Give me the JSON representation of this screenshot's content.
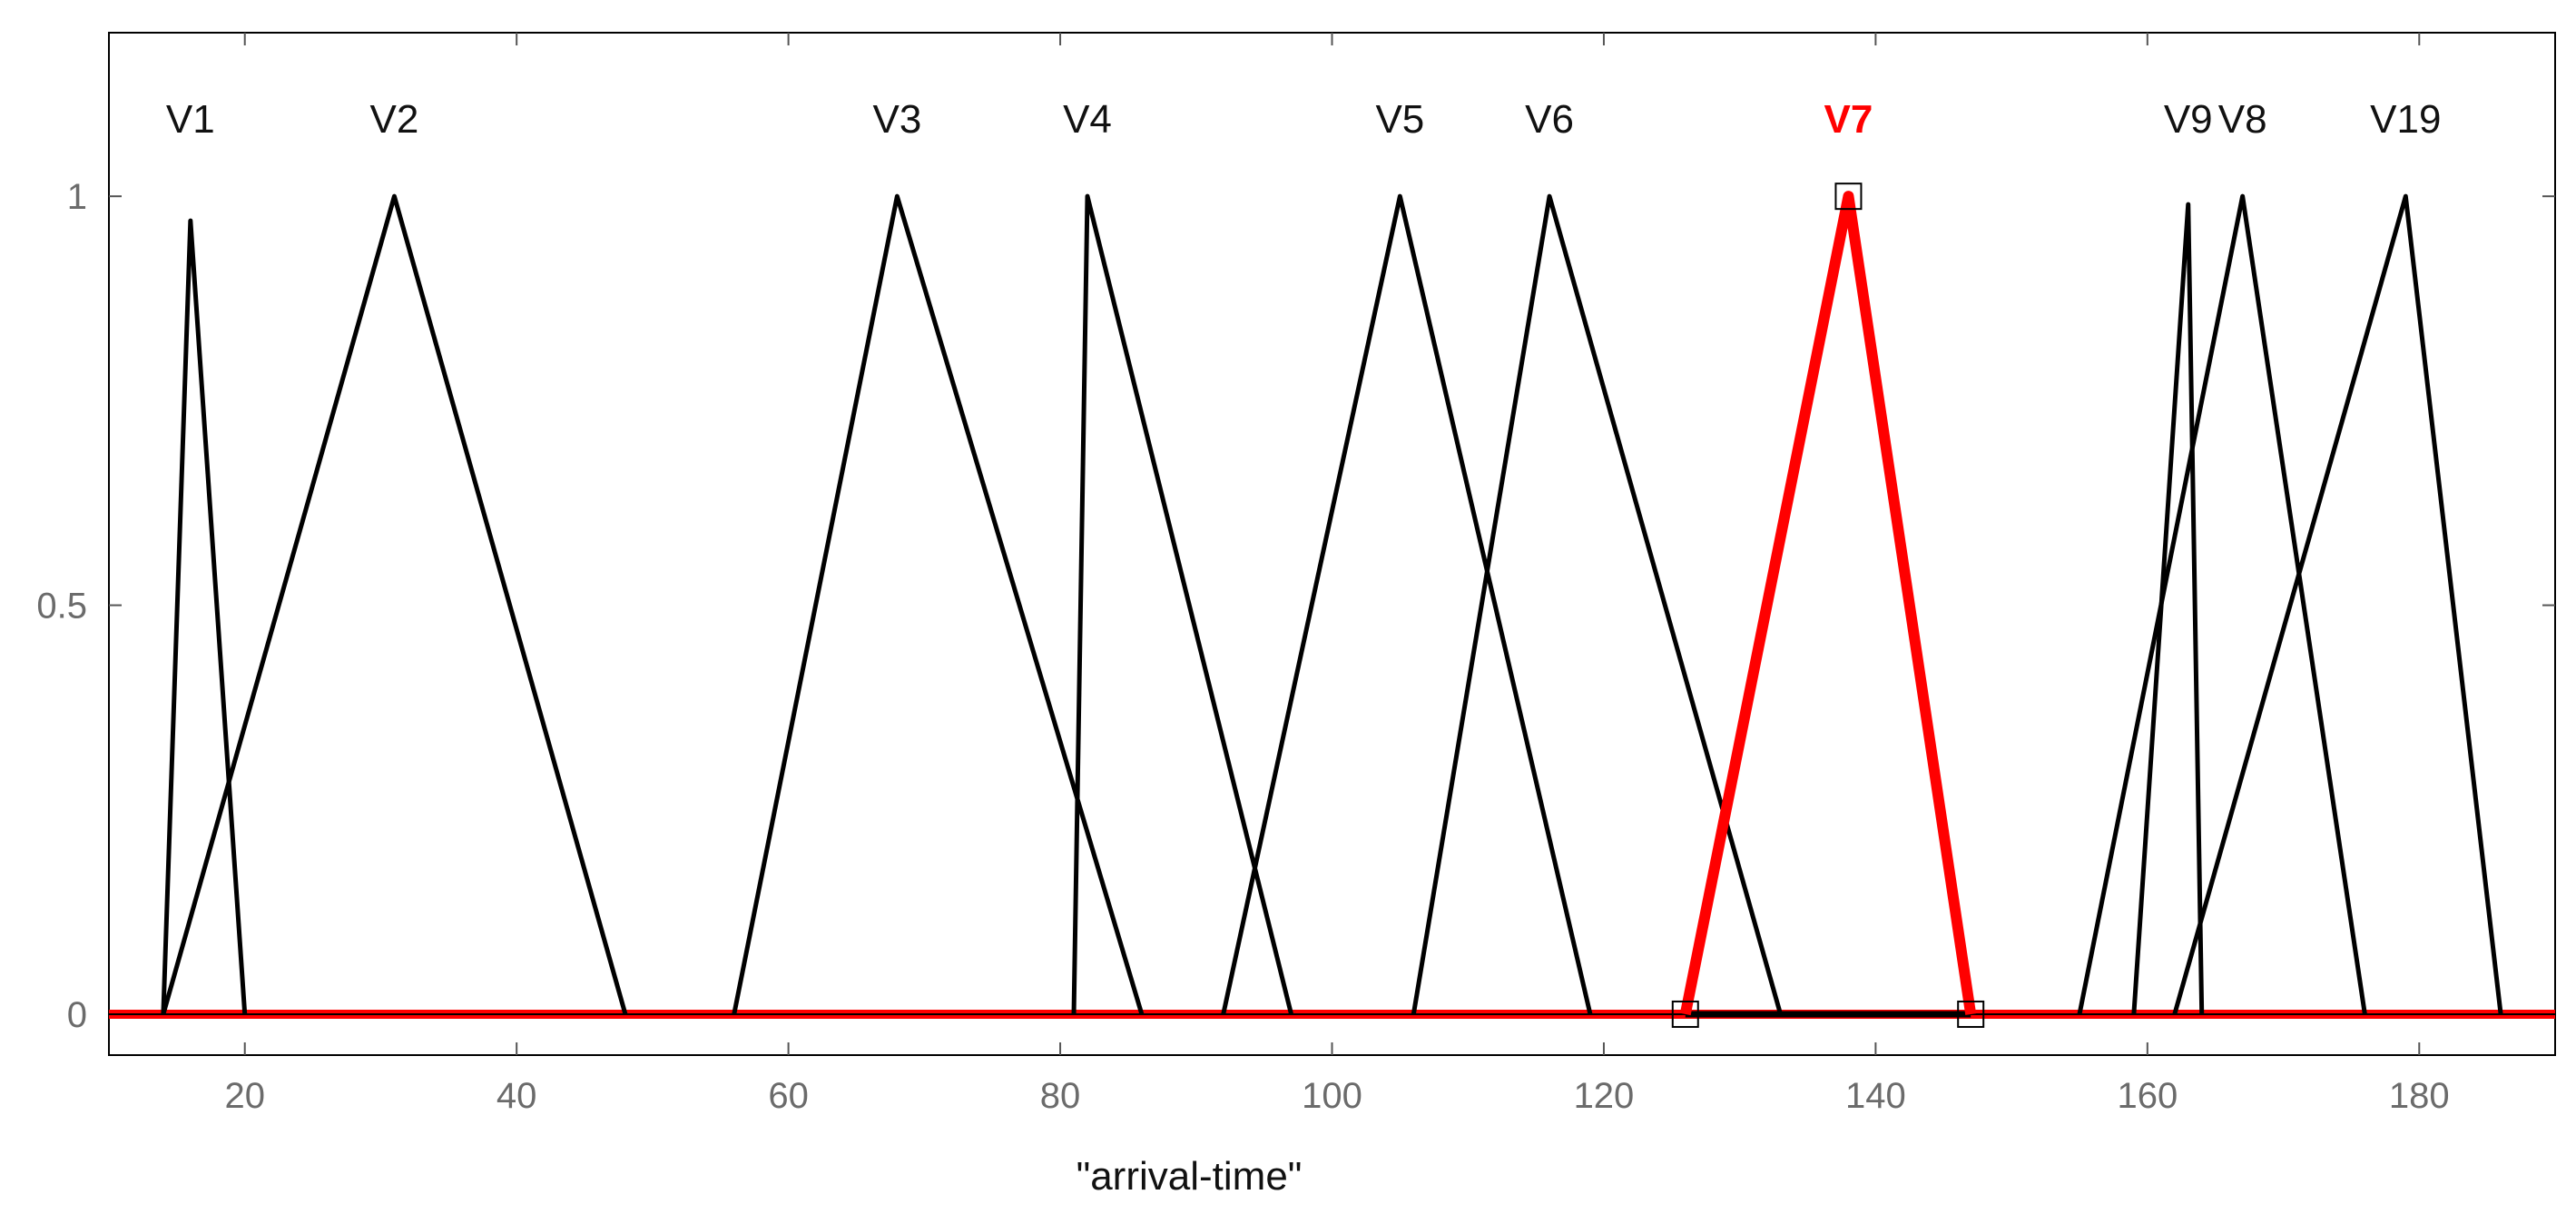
{
  "chart_data": {
    "type": "line",
    "title": "",
    "xlabel": "\"arrival-time\"",
    "ylabel": "",
    "xlim": [
      10,
      190
    ],
    "ylim": [
      -0.05,
      1.2
    ],
    "xticks": [
      20,
      40,
      60,
      80,
      100,
      120,
      140,
      160,
      180
    ],
    "yticks": [
      0,
      0.5,
      1
    ],
    "ytick_labels": [
      "0",
      "0.5",
      "1"
    ],
    "grid": false,
    "colors": {
      "default_series": "#000000",
      "highlight_series": "#ff0000",
      "tick_labels": "#6b6b6b",
      "marker_outline": "#000000"
    },
    "series": [
      {
        "name": "V1",
        "highlight": false,
        "x": [
          14,
          16,
          20
        ],
        "y": [
          0,
          0.97,
          0
        ]
      },
      {
        "name": "V2",
        "highlight": false,
        "x": [
          14,
          31,
          48
        ],
        "y": [
          0,
          1,
          0
        ]
      },
      {
        "name": "V3",
        "highlight": false,
        "x": [
          56,
          68,
          86
        ],
        "y": [
          0,
          1,
          0
        ]
      },
      {
        "name": "V4",
        "highlight": false,
        "x": [
          81,
          82,
          97
        ],
        "y": [
          0,
          1,
          0
        ]
      },
      {
        "name": "V5",
        "highlight": false,
        "x": [
          92,
          105,
          119
        ],
        "y": [
          0,
          1,
          0
        ]
      },
      {
        "name": "V6",
        "highlight": false,
        "x": [
          106,
          116,
          133
        ],
        "y": [
          0,
          1,
          0
        ]
      },
      {
        "name": "V7",
        "highlight": true,
        "x": [
          126,
          138,
          147
        ],
        "y": [
          0,
          1,
          0
        ]
      },
      {
        "name": "V9",
        "highlight": false,
        "x": [
          159,
          163,
          164
        ],
        "y": [
          0,
          0.99,
          0
        ]
      },
      {
        "name": "V8",
        "highlight": false,
        "x": [
          155,
          167,
          176
        ],
        "y": [
          0,
          1,
          0
        ]
      },
      {
        "name": "V19",
        "highlight": false,
        "x": [
          162,
          179,
          186
        ],
        "y": [
          0,
          1,
          0
        ]
      }
    ],
    "baselines": [
      {
        "color": "#ff0000",
        "x": [
          10,
          190
        ],
        "y": [
          0,
          0
        ]
      },
      {
        "color": "#000000",
        "x": [
          126,
          147
        ],
        "y": [
          0,
          0
        ]
      }
    ],
    "markers": [
      {
        "shape": "square",
        "x": 126,
        "y": 0
      },
      {
        "shape": "square",
        "x": 138,
        "y": 1
      },
      {
        "shape": "square",
        "x": 147,
        "y": 0
      }
    ],
    "labels": [
      {
        "text": "V1",
        "x": 16,
        "highlight": false
      },
      {
        "text": "V2",
        "x": 31,
        "highlight": false
      },
      {
        "text": "V3",
        "x": 68,
        "highlight": false
      },
      {
        "text": "V4",
        "x": 82,
        "highlight": false
      },
      {
        "text": "V5",
        "x": 105,
        "highlight": false
      },
      {
        "text": "V6",
        "x": 116,
        "highlight": false
      },
      {
        "text": "V7",
        "x": 138,
        "highlight": true
      },
      {
        "text": "V9",
        "x": 163,
        "highlight": false
      },
      {
        "text": "V8",
        "x": 167,
        "highlight": false
      },
      {
        "text": "V19",
        "x": 179,
        "highlight": false
      }
    ]
  }
}
